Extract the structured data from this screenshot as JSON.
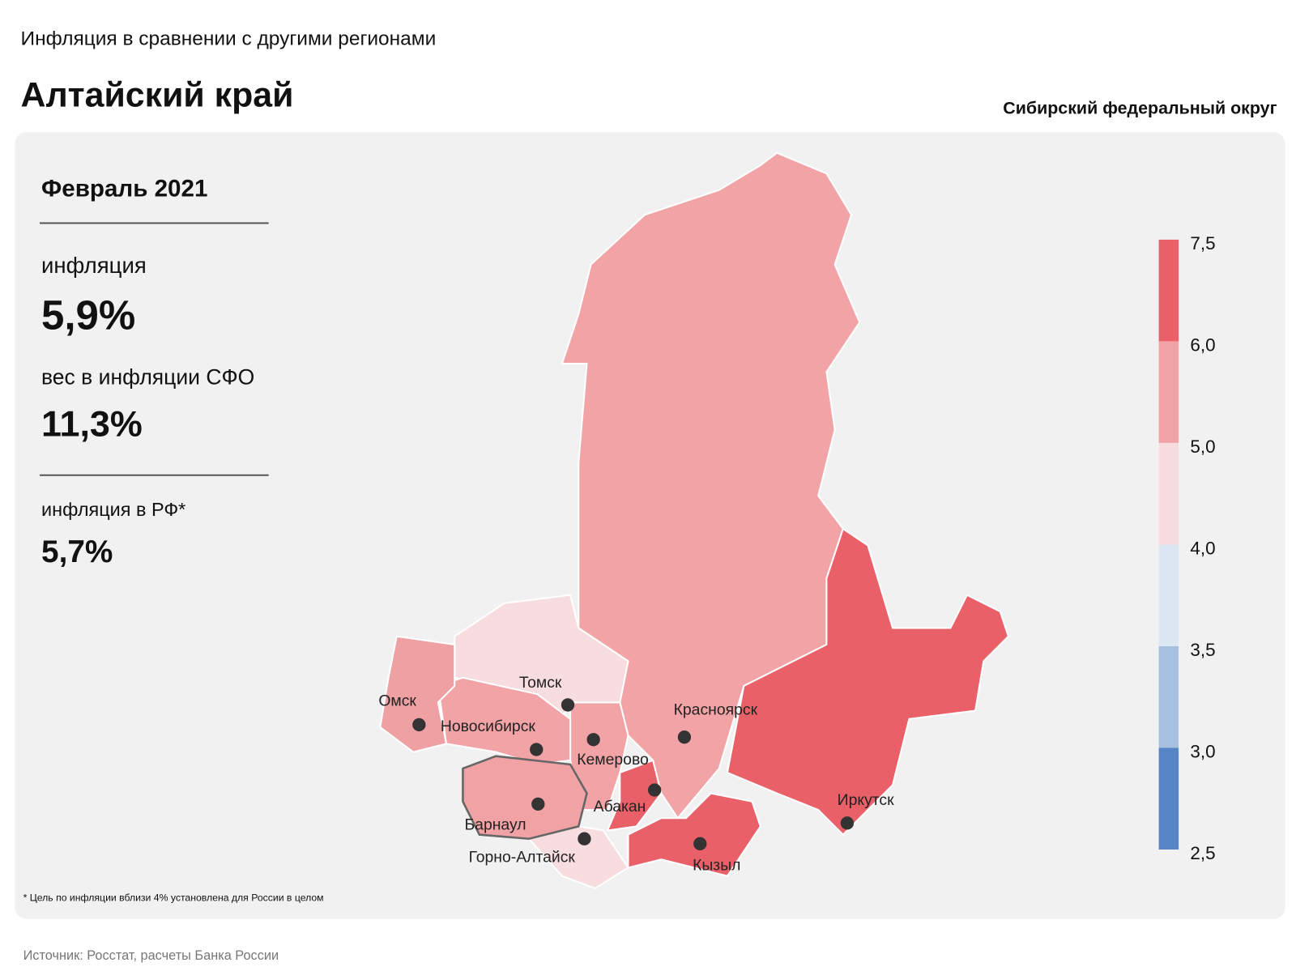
{
  "header": {
    "subtitle": "Инфляция в сравнении с другими регионами",
    "title": "Алтайский край",
    "district": "Сибирский федеральный округ"
  },
  "panel": {
    "period": "Февраль 2021",
    "inflation_label": "инфляция",
    "inflation_value": "5,9%",
    "weight_label": "вес в инфляции СФО",
    "weight_value": "11,3%",
    "rf_label": "инфляция в РФ*",
    "rf_value": "5,7%"
  },
  "legend": {
    "ticks": [
      "7,5",
      "6,0",
      "5,0",
      "4,0",
      "3,5",
      "3,0",
      "2,5"
    ],
    "colors": [
      "#ea6068",
      "#f2a3a6",
      "#f8dde0",
      "#dde6f3",
      "#a8c0e0",
      "#5585c5"
    ]
  },
  "cities": [
    "Омск",
    "Томск",
    "Новосибирск",
    "Красноярск",
    "Кемерово",
    "Абакан",
    "Барнаул",
    "Горно-Алтайск",
    "Иркутск",
    "Кызыл"
  ],
  "footnote": "* Цель по инфляции вблизи 4% установлена для России в целом",
  "source": "Источник: Росстат, расчеты Банка России"
}
